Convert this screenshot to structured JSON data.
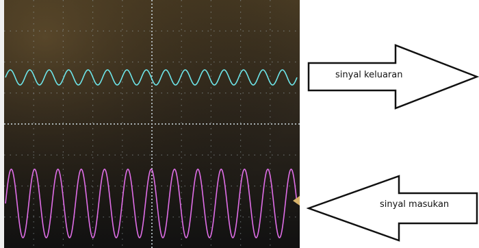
{
  "output_arrow": {
    "label": "sinyal keluaran",
    "direction": "right"
  },
  "input_arrow": {
    "label": "sinyal masukan",
    "direction": "left"
  },
  "oscilloscope": {
    "grid": true,
    "output_trace": {
      "color": "#6ee6ea",
      "cycles": 15
    },
    "input_trace": {
      "color": "#e06ee8",
      "cycles": 12.5
    },
    "background_color": "#3a2f1e"
  }
}
